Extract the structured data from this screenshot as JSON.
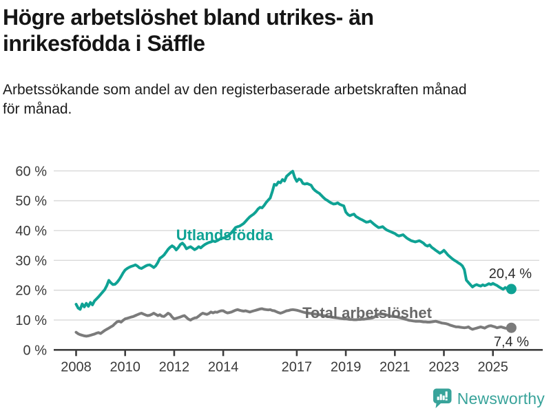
{
  "header": {
    "title_lines": [
      "Högre arbetslöshet bland utrikes- än",
      "inrikesfödda i Säffle"
    ],
    "subtitle_lines": [
      "Arbetssökande som andel av den registerbaserade arbetskraften månad",
      "för månad."
    ]
  },
  "footer": {
    "brand": "Newsworthy",
    "logo_icon": "speech-bubble-bar-chart-icon",
    "brand_color": "#38a39a"
  },
  "chart_data": {
    "type": "line",
    "title": "Högre arbetslöshet bland utrikes- än inrikesfödda i Säffle",
    "subtitle": "Arbetssökande som andel av den registerbaserade arbetskraften månad för månad.",
    "x_start_year": 2008,
    "x_months_per_point": 1,
    "x_tick_years": [
      2008,
      2010,
      2012,
      2014,
      2017,
      2019,
      2021,
      2023,
      2025
    ],
    "y_ticks": [
      0,
      10,
      20,
      30,
      40,
      50,
      60
    ],
    "y_tick_suffix": " %",
    "ylim": [
      0,
      62
    ],
    "grid": "horizontal",
    "legend_position": "inline-labels",
    "series": [
      {
        "name": "Utlandsfödda",
        "color": "#0FA294",
        "label_color": "#0FA294",
        "end_label": "20,4 %",
        "end_value": 20.4,
        "values": [
          15.3,
          14.0,
          13.6,
          15.4,
          14.4,
          15.6,
          14.6,
          15.9,
          15.1,
          16.4,
          17.1,
          17.8,
          18.6,
          19.4,
          20.2,
          21.5,
          23.3,
          22.5,
          21.9,
          22.0,
          22.6,
          23.5,
          24.6,
          25.8,
          26.8,
          27.3,
          27.7,
          28.0,
          28.2,
          28.5,
          28.1,
          27.5,
          27.3,
          27.7,
          28.1,
          28.4,
          28.5,
          28.1,
          27.6,
          28.2,
          29.3,
          30.7,
          31.2,
          31.8,
          32.7,
          33.7,
          34.4,
          34.9,
          34.4,
          33.5,
          34.3,
          35.3,
          35.8,
          35.1,
          33.9,
          34.3,
          34.6,
          34.1,
          33.6,
          34.0,
          34.6,
          34.2,
          34.8,
          35.3,
          35.7,
          36.0,
          36.2,
          36.5,
          36.3,
          36.6,
          37.0,
          37.4,
          37.5,
          37.7,
          38.0,
          38.6,
          39.3,
          40.1,
          41.0,
          41.3,
          41.5,
          41.9,
          42.4,
          43.1,
          43.9,
          44.6,
          45.1,
          45.6,
          46.3,
          47.2,
          47.8,
          47.6,
          48.4,
          49.4,
          50.2,
          50.9,
          53.0,
          55.5,
          55.2,
          56.3,
          56.0,
          57.1,
          56.6,
          58.2,
          58.8,
          59.4,
          59.9,
          57.8,
          56.5,
          57.3,
          57.0,
          55.8,
          55.6,
          55.8,
          55.5,
          55.2,
          54.1,
          53.4,
          52.9,
          52.5,
          51.8,
          51.1,
          50.5,
          50.1,
          49.6,
          49.2,
          48.9,
          49.0,
          49.3,
          48.8,
          48.5,
          48.3,
          46.2,
          45.4,
          45.0,
          45.3,
          45.5,
          44.7,
          44.3,
          43.9,
          43.6,
          43.2,
          42.8,
          42.9,
          43.2,
          42.6,
          42.0,
          41.5,
          41.0,
          41.1,
          41.3,
          40.7,
          40.2,
          39.9,
          39.6,
          39.3,
          39.0,
          38.5,
          38.2,
          38.4,
          38.6,
          38.0,
          37.4,
          37.0,
          36.6,
          36.4,
          36.2,
          36.4,
          36.6,
          36.2,
          35.8,
          35.1,
          34.8,
          35.2,
          34.4,
          33.9,
          33.4,
          32.9,
          32.4,
          32.8,
          33.4,
          32.6,
          31.8,
          31.2,
          30.6,
          30.1,
          29.7,
          29.2,
          28.8,
          28.2,
          26.9,
          23.4,
          22.6,
          21.8,
          21.1,
          21.6,
          21.9,
          21.6,
          21.4,
          21.8,
          21.5,
          21.8,
          22.2,
          21.9,
          22.3,
          21.9,
          21.6,
          21.1,
          20.7,
          20.3,
          20.9,
          20.5,
          20.1,
          20.4
        ]
      },
      {
        "name": "Total arbetslöshet",
        "color": "#7b7b7b",
        "label_color": "#686868",
        "end_label": "7,4 %",
        "end_value": 7.4,
        "values": [
          5.9,
          5.4,
          5.1,
          4.9,
          4.7,
          4.6,
          4.7,
          4.9,
          5.1,
          5.3,
          5.6,
          5.8,
          5.5,
          6.0,
          6.5,
          6.9,
          7.3,
          7.7,
          8.1,
          8.8,
          9.4,
          9.6,
          9.3,
          9.9,
          10.4,
          10.6,
          10.8,
          11.0,
          11.2,
          11.5,
          11.8,
          12.1,
          12.3,
          12.0,
          11.7,
          11.5,
          11.6,
          11.9,
          12.3,
          11.9,
          11.5,
          11.8,
          11.3,
          11.2,
          11.7,
          12.3,
          11.9,
          11.0,
          10.4,
          10.6,
          10.8,
          11.0,
          11.3,
          11.5,
          10.9,
          10.3,
          10.0,
          10.4,
          10.7,
          10.8,
          11.3,
          11.9,
          12.3,
          12.1,
          11.9,
          12.2,
          12.7,
          12.4,
          12.7,
          12.6,
          12.9,
          13.1,
          13.1,
          12.7,
          12.4,
          12.5,
          12.7,
          13.0,
          13.3,
          13.5,
          13.3,
          13.1,
          13.0,
          13.1,
          12.9,
          12.7,
          12.9,
          13.1,
          13.3,
          13.5,
          13.7,
          13.8,
          13.6,
          13.5,
          13.4,
          13.5,
          13.2,
          13.1,
          12.8,
          12.5,
          12.3,
          12.5,
          12.8,
          13.1,
          13.2,
          13.4,
          13.5,
          13.4,
          13.3,
          13.1,
          12.9,
          12.7,
          12.5,
          12.4,
          12.3,
          12.2,
          12.1,
          12.0,
          11.9,
          11.8,
          11.7,
          11.5,
          11.4,
          11.2,
          11.1,
          11.0,
          10.9,
          10.8,
          10.7,
          10.6,
          10.5,
          10.4,
          10.4,
          10.3,
          10.2,
          10.2,
          10.1,
          10.1,
          10.2,
          10.2,
          10.3,
          10.3,
          10.4,
          10.5,
          10.6,
          10.7,
          11.0,
          11.6,
          11.9,
          12.1,
          12.0,
          11.9,
          11.7,
          11.5,
          11.3,
          11.2,
          11.2,
          11.1,
          10.9,
          10.7,
          10.5,
          10.3,
          10.1,
          9.9,
          9.8,
          9.7,
          9.6,
          9.6,
          9.6,
          9.5,
          9.4,
          9.4,
          9.3,
          9.3,
          9.4,
          9.5,
          9.6,
          9.4,
          9.2,
          9.0,
          8.9,
          8.8,
          8.6,
          8.3,
          8.1,
          7.9,
          7.7,
          7.7,
          7.6,
          7.5,
          7.4,
          7.5,
          7.7,
          7.2,
          6.9,
          7.1,
          7.3,
          7.5,
          7.7,
          7.5,
          7.3,
          7.7,
          8.0,
          8.1,
          7.9,
          7.7,
          7.4,
          7.6,
          7.7,
          7.5,
          7.3,
          7.2,
          7.3,
          7.4
        ]
      }
    ]
  }
}
